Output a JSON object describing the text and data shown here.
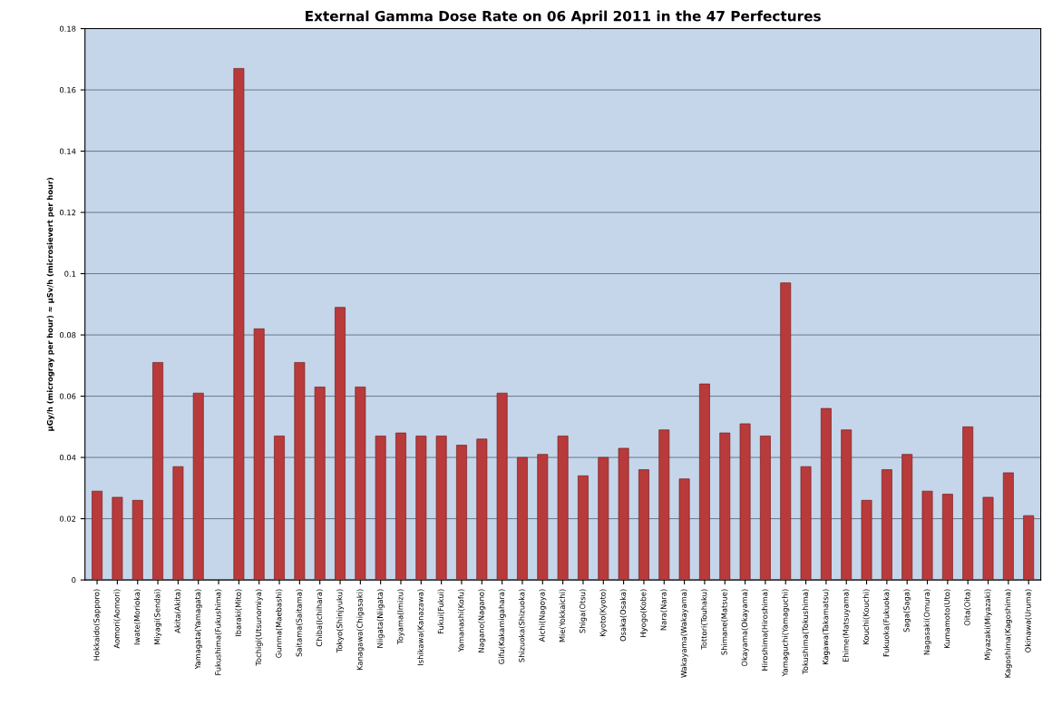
{
  "chart_data": {
    "type": "bar",
    "title": "External Gamma Dose Rate on 06 April 2011 in the 47 Perfectures",
    "ylabel": "µGy/h (microgray per hour) ≈ µSv/h (microsievert per hour)",
    "categories": [
      "Hokkaido(Sapporo)",
      "Aomori(Aomori)",
      "Iwate(Morioka)",
      "Miyagi(Sendai)",
      "Akita(Akita)",
      "Yamagata(Yamagata)",
      "Fukushima(Fukushima)",
      "Ibaraki(Mito)",
      "Tochigi(Utsunomiya)",
      "Gunma(Maebashi)",
      "Saitama(Saitama)",
      "Chiba(Ichihara)",
      "Tokyo(Shinjyuku)",
      "Kanagawa(Chigasaki)",
      "Niigata(Niigata)",
      "Toyama(Imizu)",
      "Ishikawa(Kanazawa)",
      "Fukui(Fukui)",
      "Yamanashi(Kofu)",
      "Nagano(Nagano)",
      "Gifu(Kakamigahara)",
      "Shizuoka(Shizuoka)",
      "Aichi(Nagoya)",
      "Mie(Yokkaichi)",
      "Shiga(Otsu)",
      "Kyoto(Kyoto)",
      "Osaka(Osaka)",
      "Hyogo(Kobe)",
      "Nara(Nara)",
      "Wakayama(Wakayama)",
      "Tottori(Touhaku)",
      "Shimane(Matsue)",
      "Okayama(Okayama)",
      "Hiroshima(Hiroshima)",
      "Yamaguchi(Yamaguchi)",
      "Tokushima(Tokushima)",
      "Kagawa(Takamatsu)",
      "Ehime(Matsuyama)",
      "Kouchi(Kouchi)",
      "Fukuoka(Fukuoka)",
      "Saga(Saga)",
      "Nagasaki(Omura)",
      "Kumamoto(Uto)",
      "Oita(Oita)",
      "Miyazaki(Miyazaki)",
      "Kagoshima(Kagoshima)",
      "Okinawa(Uruma)"
    ],
    "values": [
      0.029,
      0.027,
      0.026,
      0.071,
      0.037,
      0.061,
      null,
      0.167,
      0.082,
      0.047,
      0.071,
      0.063,
      0.089,
      0.063,
      0.047,
      0.048,
      0.047,
      0.047,
      0.044,
      0.046,
      0.061,
      0.04,
      0.041,
      0.047,
      0.034,
      0.04,
      0.043,
      0.036,
      0.049,
      0.033,
      0.064,
      0.048,
      0.051,
      0.047,
      0.097,
      0.037,
      0.056,
      0.049,
      0.026,
      0.036,
      0.041,
      0.029,
      0.028,
      0.05,
      0.027,
      0.035,
      0.021
    ],
    "color": "#b83a3a",
    "ylim": [
      0,
      0.18
    ],
    "yticks": [
      0,
      0.02,
      0.04,
      0.06,
      0.08,
      0.1,
      0.12,
      0.14,
      0.16,
      0.18
    ],
    "grid": "y"
  }
}
